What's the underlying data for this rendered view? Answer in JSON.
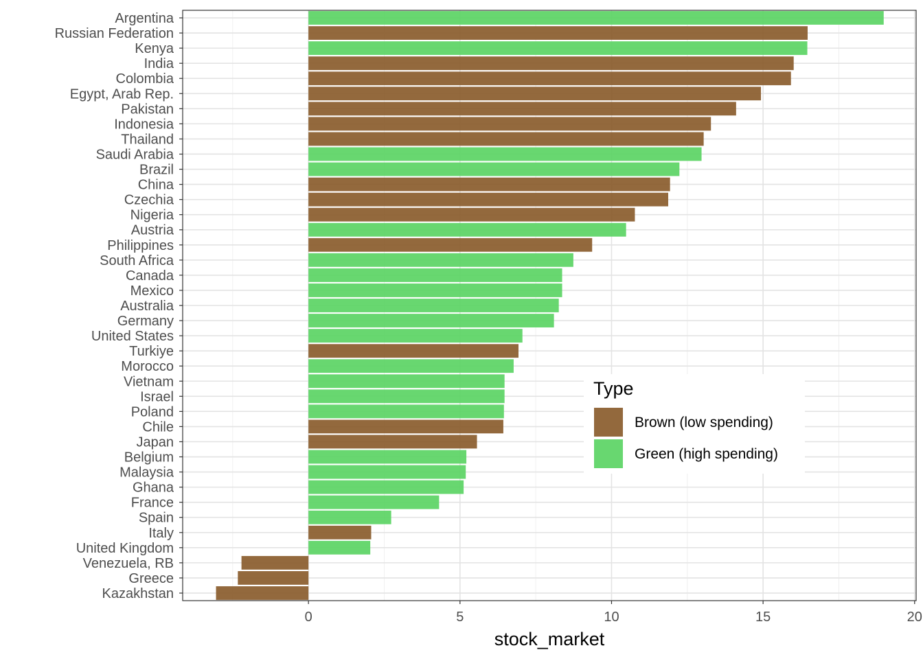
{
  "chart_data": {
    "type": "bar",
    "orientation": "horizontal",
    "title": "",
    "xlabel": "stock_market",
    "ylabel": "",
    "xlim": [
      -4.15,
      20.05
    ],
    "xticks": [
      0,
      5,
      10,
      15,
      20
    ],
    "grid": true,
    "legend_position": "right",
    "legend_title": "Type",
    "series_types": [
      {
        "name": "Brown (low spending)",
        "color": "#8b5e2e"
      },
      {
        "name": "Green (high spending)",
        "color": "#5dd465"
      }
    ],
    "categories": [
      "Argentina",
      "Russian Federation",
      "Kenya",
      "India",
      "Colombia",
      "Egypt, Arab Rep.",
      "Pakistan",
      "Indonesia",
      "Thailand",
      "Saudi Arabia",
      "Brazil",
      "China",
      "Czechia",
      "Nigeria",
      "Austria",
      "Philippines",
      "South Africa",
      "Canada",
      "Mexico",
      "Australia",
      "Germany",
      "United States",
      "Turkiye",
      "Morocco",
      "Vietnam",
      "Israel",
      "Poland",
      "Chile",
      "Japan",
      "Belgium",
      "Malaysia",
      "Ghana",
      "France",
      "Spain",
      "Italy",
      "United Kingdom",
      "Venezuela, RB",
      "Greece",
      "Kazakhstan"
    ],
    "values": [
      18.98,
      16.47,
      16.46,
      16.01,
      15.92,
      14.93,
      14.11,
      13.28,
      13.04,
      12.97,
      12.24,
      11.93,
      11.87,
      10.77,
      10.48,
      9.36,
      8.74,
      8.37,
      8.37,
      8.26,
      8.1,
      7.06,
      6.93,
      6.77,
      6.47,
      6.47,
      6.45,
      6.43,
      5.56,
      5.21,
      5.19,
      5.12,
      4.31,
      2.73,
      2.07,
      2.04,
      -2.21,
      -2.33,
      -3.05
    ],
    "types": [
      "Green (high spending)",
      "Brown (low spending)",
      "Green (high spending)",
      "Brown (low spending)",
      "Brown (low spending)",
      "Brown (low spending)",
      "Brown (low spending)",
      "Brown (low spending)",
      "Brown (low spending)",
      "Green (high spending)",
      "Green (high spending)",
      "Brown (low spending)",
      "Brown (low spending)",
      "Brown (low spending)",
      "Green (high spending)",
      "Brown (low spending)",
      "Green (high spending)",
      "Green (high spending)",
      "Green (high spending)",
      "Green (high spending)",
      "Green (high spending)",
      "Green (high spending)",
      "Brown (low spending)",
      "Green (high spending)",
      "Green (high spending)",
      "Green (high spending)",
      "Green (high spending)",
      "Brown (low spending)",
      "Brown (low spending)",
      "Green (high spending)",
      "Green (high spending)",
      "Green (high spending)",
      "Green (high spending)",
      "Green (high spending)",
      "Brown (low spending)",
      "Green (high spending)",
      "Brown (low spending)",
      "Brown (low spending)",
      "Brown (low spending)"
    ]
  }
}
